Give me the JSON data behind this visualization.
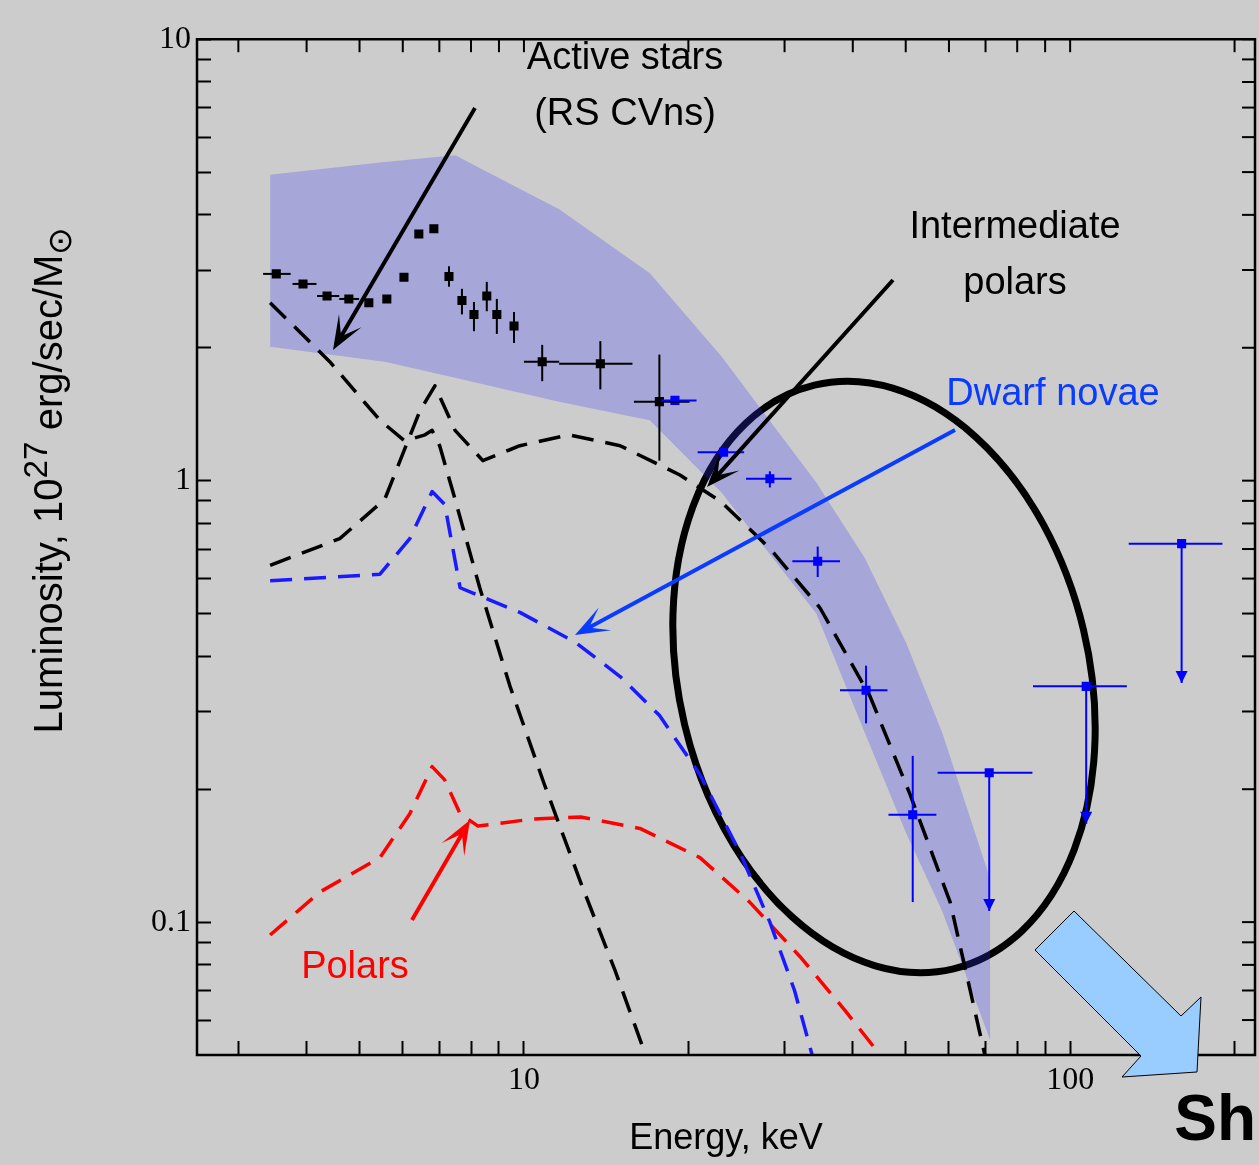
{
  "chart_data": {
    "type": "line",
    "log": "xy",
    "xlabel": "Energy, keV",
    "ylabel": "Luminosity, 10$^{27}$  erg/sec/M$_{⊙}$",
    "xlim": [
      2.52,
      218
    ],
    "ylim": [
      0.05,
      10
    ],
    "xticks": [
      {
        "value": 3,
        "label": null
      },
      {
        "value": 4,
        "label": null
      },
      {
        "value": 5,
        "label": null
      },
      {
        "value": 6,
        "label": null
      },
      {
        "value": 7,
        "label": null
      },
      {
        "value": 8,
        "label": null
      },
      {
        "value": 9,
        "label": null
      },
      10,
      {
        "value": 20,
        "label": null
      },
      {
        "value": 30,
        "label": null
      },
      {
        "value": 40,
        "label": null
      },
      {
        "value": 50,
        "label": null
      },
      {
        "value": 60,
        "label": null
      },
      {
        "value": 70,
        "label": null
      },
      {
        "value": 80,
        "label": null
      },
      {
        "value": 90,
        "label": null
      },
      100,
      {
        "value": 200,
        "label": null
      }
    ],
    "yticks": [
      {
        "value": 0.06,
        "label": null
      },
      {
        "value": 0.07,
        "label": null
      },
      {
        "value": 0.08,
        "label": null
      },
      {
        "value": 0.09,
        "label": null
      },
      0.1,
      {
        "value": 0.2,
        "label": null
      },
      {
        "value": 0.3,
        "label": null
      },
      {
        "value": 0.4,
        "label": null
      },
      {
        "value": 0.5,
        "label": null
      },
      {
        "value": 0.6,
        "label": null
      },
      {
        "value": 0.7,
        "label": null
      },
      {
        "value": 0.8,
        "label": null
      },
      {
        "value": 0.9,
        "label": null
      },
      1,
      {
        "value": 2,
        "label": null
      },
      {
        "value": 3,
        "label": null
      },
      {
        "value": 4,
        "label": null
      },
      {
        "value": 5,
        "label": null
      },
      {
        "value": 6,
        "label": null
      },
      {
        "value": 7,
        "label": null
      },
      {
        "value": 8,
        "label": null
      },
      {
        "value": 9,
        "label": null
      },
      10
    ],
    "series": [
      {
        "type": "area",
        "color": "#3333ff",
        "x": [
          3.43,
          5.56,
          7.48,
          11.6,
          17.0,
          23.0,
          34.3,
          42.1,
          50.1,
          58.3,
          71.4
        ],
        "values": [
          null,
          null,
          null,
          null,
          null,
          null,
          null,
          null,
          null,
          null,
          null
        ],
        "lower": [
          2.01,
          1.86,
          1.71,
          1.51,
          1.37,
          0.94,
          0.5,
          0.268,
          0.159,
          0.106,
          0.054
        ],
        "upper": [
          4.93,
          5.27,
          5.46,
          4.12,
          2.95,
          1.91,
          0.99,
          0.667,
          0.429,
          0.269,
          0.125
        ]
      },
      {
        "type": "line",
        "color": "#000000",
        "line_style": "dashed",
        "marker": "none",
        "x": [
          3.43,
          4.41,
          5.45,
          6.05,
          6.59,
          6.79,
          7.01,
          7.48,
          8.3,
          9.43,
          10.9,
          12.7,
          14.7,
          16.7
        ],
        "values": [
          2.53,
          1.86,
          1.37,
          1.23,
          1.27,
          1.3,
          1.2,
          0.907,
          0.572,
          0.342,
          0.205,
          0.123,
          0.0774,
          0.05
        ]
      },
      {
        "type": "line",
        "color": "#000000",
        "line_style": "dashed",
        "marker": "none",
        "x": [
          3.43,
          4.6,
          5.56,
          6.45,
          6.87,
          7.48,
          8.41,
          9.83,
          12.1,
          15.0,
          19.3,
          22.9,
          28.2,
          34.8,
          43.0,
          50.9,
          60.3,
          69.8
        ],
        "values": [
          0.643,
          0.739,
          0.907,
          1.44,
          1.64,
          1.3,
          1.11,
          1.2,
          1.27,
          1.2,
          1.03,
          0.898,
          0.702,
          0.516,
          0.325,
          0.195,
          0.111,
          0.05
        ]
      },
      {
        "type": "line",
        "color": "#1a1aff",
        "line_style": "dashed",
        "marker": "none",
        "x": [
          3.43,
          5.45,
          6.18,
          6.79,
          7.16,
          7.64,
          9.83,
          12.4,
          15.0,
          17.7,
          21.0,
          24.9,
          28.2,
          31.3,
          33.7
        ],
        "values": [
          0.593,
          0.614,
          0.739,
          0.945,
          0.884,
          0.572,
          0.503,
          0.431,
          0.36,
          0.294,
          0.216,
          0.143,
          0.1,
          0.0699,
          0.05
        ]
      },
      {
        "type": "line",
        "color": "#ff0000",
        "line_style": "dashed",
        "marker": "none",
        "x": [
          3.43,
          4.23,
          5.45,
          6.18,
          6.79,
          7.16,
          7.64,
          8.24,
          10.3,
          12.7,
          16.3,
          21.0,
          25.9,
          32.0,
          38.7,
          44.9
        ],
        "values": [
          0.0935,
          0.117,
          0.14,
          0.176,
          0.225,
          0.21,
          0.176,
          0.165,
          0.171,
          0.173,
          0.163,
          0.14,
          0.111,
          0.0836,
          0.0631,
          0.05
        ]
      },
      {
        "type": "scatter",
        "color": "#000000",
        "marker": "square",
        "x": [
          3.52,
          3.94,
          4.36,
          4.78,
          5.2,
          5.61,
          6.03,
          6.42,
          6.84,
          7.29,
          7.7,
          8.1,
          8.55,
          8.92,
          9.59,
          10.8,
          13.8,
          17.7
        ],
        "values": [
          2.94,
          2.79,
          2.62,
          2.58,
          2.53,
          2.58,
          2.89,
          3.62,
          3.72,
          2.9,
          2.56,
          2.38,
          2.62,
          2.38,
          2.24,
          1.86,
          1.84,
          1.51
        ],
        "errors": [
          null,
          null,
          null,
          null,
          null,
          null,
          null,
          null,
          null,
          [
            2.75,
            3.06
          ],
          [
            2.38,
            2.72
          ],
          [
            2.18,
            2.54
          ],
          [
            2.42,
            2.82
          ],
          [
            2.15,
            2.58
          ],
          [
            2.05,
            2.41
          ],
          [
            1.68,
            2.03
          ],
          [
            1.61,
            2.07
          ],
          [
            1.11,
            1.93
          ]
        ],
        "xerrors": [
          [
            3.33,
            3.74
          ],
          [
            3.77,
            4.17
          ],
          [
            4.18,
            4.59
          ],
          [
            4.59,
            4.99
          ],
          null,
          null,
          null,
          null,
          null,
          null,
          null,
          null,
          null,
          null,
          null,
          [
            10,
            11.6
          ],
          [
            11.6,
            15.8
          ],
          [
            15.9,
            20.1
          ]
        ]
      },
      {
        "type": "scatter",
        "color": "#0000ff",
        "marker": "square",
        "x": [
          18.9,
          23.2,
          28.2,
          34.5,
          42.3,
          51.5,
          71.1,
          107,
          160
        ],
        "values": [
          1.52,
          1.16,
          1.01,
          0.657,
          0.335,
          0.175,
          0.218,
          0.342,
          0.72
        ],
        "errors": [
          null,
          null,
          [
            0.965,
            1.05
          ],
          [
            0.605,
            0.709
          ],
          [
            0.282,
            0.381
          ],
          [
            0.111,
            0.238
          ],
          [
            0.106,
            0.218
          ],
          [
            0.167,
            0.342
          ],
          [
            0.348,
            0.72
          ]
        ],
        "xerrors": [
          [
            17.8,
            20.7
          ],
          [
            20.8,
            25.3
          ],
          [
            25.5,
            30.9
          ],
          [
            31.0,
            37.9
          ],
          [
            37.9,
            46.3
          ],
          [
            46.5,
            56.9
          ],
          [
            57.2,
            85.3
          ],
          [
            85.5,
            127
          ],
          [
            128,
            190
          ]
        ]
      }
    ],
    "annotations": [
      "Active stars\n(RS CVns)",
      "Intermediate\npolars",
      "Dwarf novae",
      "Polars",
      "Sh"
    ]
  }
}
